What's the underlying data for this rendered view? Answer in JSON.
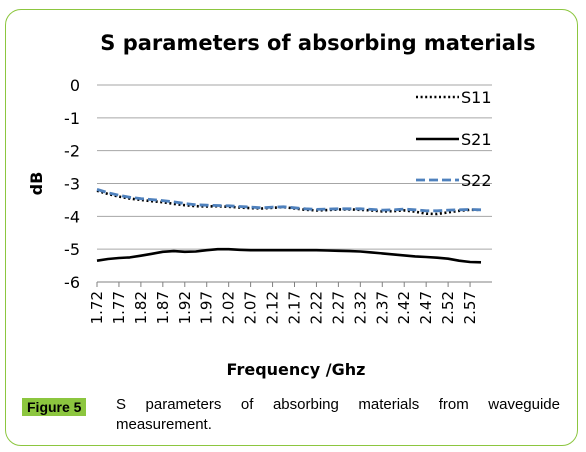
{
  "chart_data": {
    "type": "line",
    "title": "S parameters of absorbing materials",
    "xlabel": "Frequency /Ghz",
    "ylabel": "dB",
    "ylim": [
      -6,
      0
    ],
    "yticks": [
      "0",
      "-1",
      "-2",
      "-3",
      "-4",
      "-5",
      "-6"
    ],
    "categories": [
      "1.72",
      "1.77",
      "1.82",
      "1.87",
      "1.92",
      "1.97",
      "2.02",
      "2.07",
      "2.12",
      "2.17",
      "2.22",
      "2.27",
      "2.32",
      "2.37",
      "2.42",
      "2.47",
      "2.52",
      "2.57"
    ],
    "x": [
      1.72,
      1.745,
      1.77,
      1.795,
      1.82,
      1.845,
      1.87,
      1.895,
      1.92,
      1.945,
      1.97,
      1.995,
      2.02,
      2.045,
      2.07,
      2.095,
      2.12,
      2.145,
      2.17,
      2.195,
      2.22,
      2.245,
      2.27,
      2.295,
      2.32,
      2.345,
      2.37,
      2.395,
      2.42,
      2.445,
      2.47,
      2.495,
      2.52,
      2.545,
      2.57,
      2.595
    ],
    "grid": true,
    "legend_position": "right",
    "series": [
      {
        "name": "S11",
        "style": "dotted",
        "color": "#000000",
        "values": [
          -3.22,
          -3.32,
          -3.4,
          -3.46,
          -3.5,
          -3.54,
          -3.57,
          -3.62,
          -3.66,
          -3.69,
          -3.7,
          -3.69,
          -3.71,
          -3.73,
          -3.75,
          -3.76,
          -3.74,
          -3.72,
          -3.76,
          -3.8,
          -3.82,
          -3.81,
          -3.79,
          -3.79,
          -3.8,
          -3.82,
          -3.85,
          -3.84,
          -3.82,
          -3.86,
          -3.92,
          -3.93,
          -3.88,
          -3.83,
          -3.8,
          -3.8
        ]
      },
      {
        "name": "S21",
        "style": "solid",
        "color": "#000000",
        "values": [
          -5.35,
          -5.3,
          -5.27,
          -5.25,
          -5.2,
          -5.14,
          -5.08,
          -5.06,
          -5.08,
          -5.07,
          -5.03,
          -5.0,
          -5.0,
          -5.02,
          -5.03,
          -5.03,
          -5.03,
          -5.03,
          -5.03,
          -5.03,
          -5.03,
          -5.04,
          -5.05,
          -5.06,
          -5.07,
          -5.1,
          -5.13,
          -5.16,
          -5.19,
          -5.22,
          -5.24,
          -5.26,
          -5.29,
          -5.35,
          -5.39,
          -5.4
        ]
      },
      {
        "name": "S22",
        "style": "dashed",
        "color": "#4f81bd",
        "values": [
          -3.18,
          -3.28,
          -3.36,
          -3.42,
          -3.46,
          -3.49,
          -3.52,
          -3.56,
          -3.61,
          -3.65,
          -3.66,
          -3.67,
          -3.68,
          -3.7,
          -3.72,
          -3.74,
          -3.72,
          -3.71,
          -3.74,
          -3.77,
          -3.79,
          -3.78,
          -3.77,
          -3.77,
          -3.77,
          -3.79,
          -3.81,
          -3.8,
          -3.78,
          -3.8,
          -3.83,
          -3.83,
          -3.81,
          -3.8,
          -3.79,
          -3.8
        ]
      }
    ]
  },
  "caption": {
    "label": "Figure 5",
    "text": "S parameters of absorbing materials from waveguide measurement."
  }
}
